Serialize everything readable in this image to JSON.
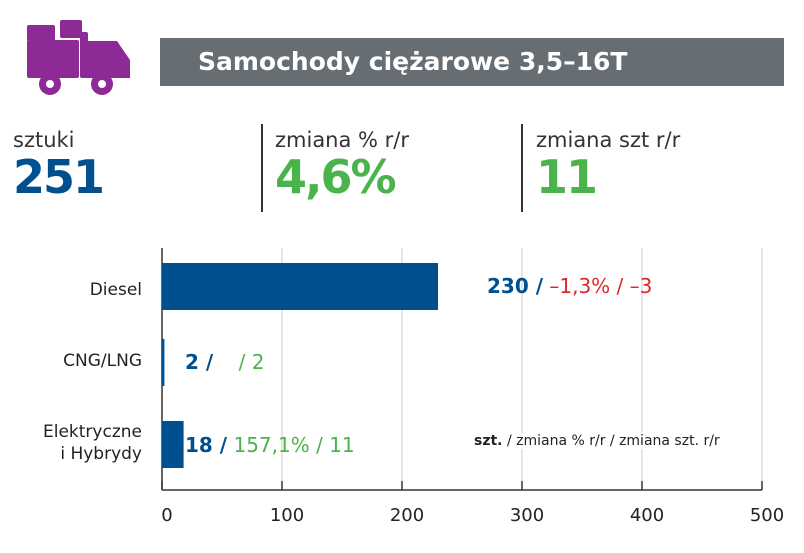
{
  "header": {
    "title": "Samochody ciężarowe 3,5–16T",
    "icon": "truck-icon",
    "icon_color": "#8e2a95"
  },
  "kpis": [
    {
      "label": "sztuki",
      "value": "251",
      "color": "#00508f"
    },
    {
      "label": "zmiana % r/r",
      "value": "4,6%",
      "color": "#4bb34b"
    },
    {
      "label": "zmiana szt r/r",
      "value": "11",
      "color": "#4bb34b"
    }
  ],
  "chart_data": {
    "type": "bar",
    "orientation": "horizontal",
    "categories": [
      "Diesel",
      "CNG/LNG",
      "Elektryczne\ni Hybrydy"
    ],
    "category_lines": [
      [
        "Diesel"
      ],
      [
        "CNG/LNG"
      ],
      [
        "Elektryczne",
        "i Hybrydy"
      ]
    ],
    "values": [
      230,
      2,
      18
    ],
    "labels": [
      {
        "count": "230 /",
        "pct": "–1,3% /",
        "chg": "–3",
        "change_color": "#e0262b"
      },
      {
        "count": "2 /",
        "pct": "",
        "chg": "/ 2",
        "change_color": "#4bb34b"
      },
      {
        "count": "18 /",
        "pct": "157,1% /",
        "chg": "11",
        "change_color": "#4bb34b"
      }
    ],
    "xlim": [
      0,
      500
    ],
    "xticks": [
      "0",
      "100",
      "200",
      "300",
      "400",
      "500"
    ],
    "grid": true,
    "bar_color": "#00508f",
    "legend": {
      "bold": "szt.",
      "rest": " / zmiana % r/r / zmiana szt. r/r"
    }
  }
}
